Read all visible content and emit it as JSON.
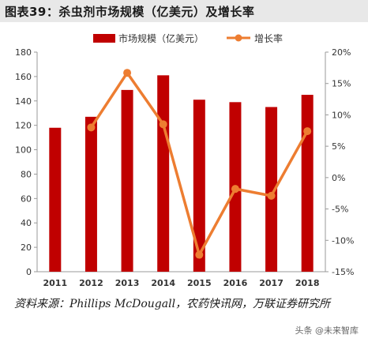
{
  "header": {
    "title": "图表39：杀虫剂市场规模（亿美元）及增长率"
  },
  "footer": {
    "source": "资料来源：Phillips McDougall，农药快讯网，万联证券研究所",
    "watermark": "头条 @未来智库"
  },
  "chart_data": {
    "type": "bar+line",
    "categories": [
      "2011",
      "2012",
      "2013",
      "2014",
      "2015",
      "2016",
      "2017",
      "2018"
    ],
    "series": [
      {
        "name": "市场规模（亿美元）",
        "type": "bar",
        "axis": "left",
        "color": "#c00000",
        "values": [
          118,
          127,
          149,
          161,
          141,
          139,
          135,
          145
        ]
      },
      {
        "name": "增长率",
        "type": "line",
        "axis": "right",
        "color": "#ed7d31",
        "values": [
          null,
          8.0,
          16.7,
          8.5,
          -12.3,
          -1.8,
          -2.9,
          7.4
        ]
      }
    ],
    "yleft": {
      "min": 0,
      "max": 180,
      "ticks": [
        "0",
        "20",
        "40",
        "60",
        "80",
        "100",
        "120",
        "140",
        "160",
        "180"
      ]
    },
    "yright": {
      "min": -15,
      "max": 20,
      "ticks": [
        "-15%",
        "-10%",
        "-5%",
        "0%",
        "5%",
        "10%",
        "15%",
        "20%"
      ]
    },
    "legend_position": "top",
    "grid": false
  }
}
